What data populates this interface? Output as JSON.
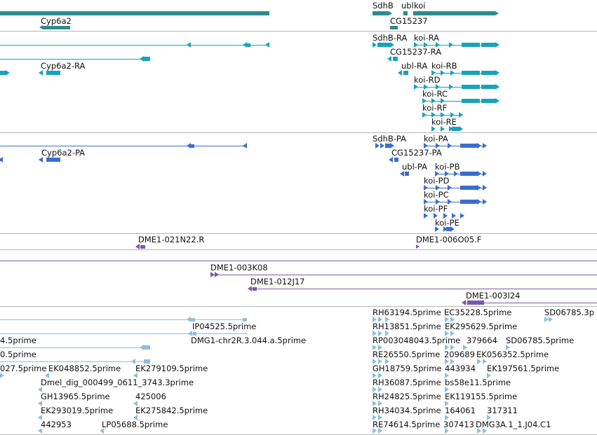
{
  "colors": {
    "gene": "#2f8a8c",
    "transcript": "#18a3bd",
    "protein": "#3a6fcc",
    "clone": "#7a5aa8",
    "est": "#8dbfdc",
    "divider": "#b5b5b5"
  },
  "tracks": {
    "gene": {
      "labels": [
        "SdhB",
        "ubl",
        "koi",
        "Cyp6a2",
        "CG15237"
      ]
    },
    "transcript": {
      "labels": [
        "SdhB-RA",
        "koi-RA",
        "Cyp6a2-RA",
        "CG15237-RA",
        "ubl-RA",
        "koi-RB",
        "koi-RD",
        "koi-RC",
        "koi-RF",
        "koi-RE"
      ]
    },
    "protein": {
      "labels": [
        "SdhB-PA",
        "koi-PA",
        "Cyp6a2-PA",
        "CG15237-PA",
        "ubl-PA",
        "koi-PB",
        "koi-PD",
        "koi-PC",
        "koi-PF",
        "koi-PE"
      ]
    },
    "clone_end": {
      "labels": [
        "DME1-021N22.R",
        "DME1-006O05.F"
      ]
    },
    "clone": {
      "labels": [
        "DME1-003K08",
        "DME1-012J17",
        "DME1-003I24"
      ]
    },
    "est": {
      "labels": [
        "RH63194.5prime",
        "EC35228.5prime",
        "SD06785.3p",
        "IP04525.5prime",
        "RH13851.5prime",
        "EK295629.5prime",
        "4.5prime",
        "DMG1-chr2R.3.044.a.5prime",
        "RP003048043.5prime",
        "379664",
        "SD06785.5prime",
        "0.5prime",
        "RE26550.5prime",
        "209689",
        "EK056352.5prime",
        "027.5prime",
        "EK048852.5prime",
        "EK279109.5prime",
        "GH18759.5prime",
        "443934",
        "EK197561.5prime",
        "Dmel_dig_000499_0611_3743.3prime",
        "RH36087.5prime",
        "bs58e11.5prime",
        "GH13965.5prime",
        "425006",
        "RH24825.5prime",
        "EK119155.5prime",
        "EK293019.5prime",
        "EK275842.5prime",
        "RH34034.5prime",
        "164061",
        "317311",
        "442953",
        "LP05688.5prime",
        "RE74614.5prime",
        "307413",
        "DMG3A.1_1.J04.C1"
      ]
    }
  }
}
